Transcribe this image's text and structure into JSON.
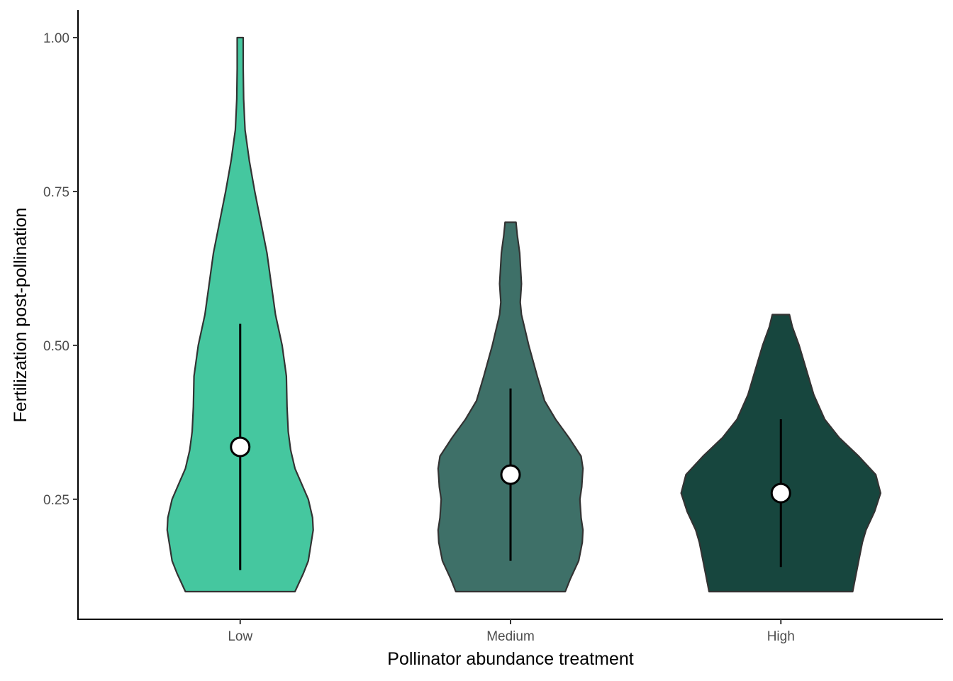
{
  "chart_data": {
    "type": "violin",
    "xlabel": "Pollinator abundance treatment",
    "ylabel": "Fertilization post-pollination",
    "categories": [
      "Low",
      "Medium",
      "High"
    ],
    "yticks": [
      0.25,
      0.5,
      0.75,
      1.0
    ],
    "ytick_labels": [
      "0.25",
      "0.50",
      "0.75",
      "1.00"
    ],
    "ylim": [
      0.055,
      1.045
    ],
    "grid": false,
    "legend": "none",
    "colors": [
      "#45c79f",
      "#3e7068",
      "#17463e"
    ],
    "outline_color": "#333333",
    "violins": [
      {
        "category": "Low",
        "mean": 0.335,
        "error_low": 0.135,
        "error_high": 0.535,
        "profile": [
          [
            0.1,
            0.45
          ],
          [
            0.13,
            0.52
          ],
          [
            0.15,
            0.56
          ],
          [
            0.2,
            0.6
          ],
          [
            0.22,
            0.595
          ],
          [
            0.25,
            0.56
          ],
          [
            0.3,
            0.45
          ],
          [
            0.33,
            0.415
          ],
          [
            0.36,
            0.395
          ],
          [
            0.4,
            0.385
          ],
          [
            0.45,
            0.38
          ],
          [
            0.5,
            0.345
          ],
          [
            0.55,
            0.29
          ],
          [
            0.6,
            0.255
          ],
          [
            0.65,
            0.22
          ],
          [
            0.7,
            0.17
          ],
          [
            0.75,
            0.12
          ],
          [
            0.8,
            0.075
          ],
          [
            0.85,
            0.04
          ],
          [
            0.9,
            0.028
          ],
          [
            0.95,
            0.025
          ],
          [
            1.0,
            0.025
          ]
        ]
      },
      {
        "category": "Medium",
        "mean": 0.29,
        "error_low": 0.15,
        "error_high": 0.43,
        "profile": [
          [
            0.1,
            0.45
          ],
          [
            0.12,
            0.49
          ],
          [
            0.15,
            0.56
          ],
          [
            0.18,
            0.59
          ],
          [
            0.2,
            0.595
          ],
          [
            0.22,
            0.58
          ],
          [
            0.25,
            0.57
          ],
          [
            0.27,
            0.585
          ],
          [
            0.3,
            0.595
          ],
          [
            0.32,
            0.58
          ],
          [
            0.35,
            0.48
          ],
          [
            0.38,
            0.37
          ],
          [
            0.41,
            0.28
          ],
          [
            0.45,
            0.22
          ],
          [
            0.5,
            0.15
          ],
          [
            0.55,
            0.09
          ],
          [
            0.57,
            0.08
          ],
          [
            0.6,
            0.09
          ],
          [
            0.65,
            0.075
          ],
          [
            0.68,
            0.055
          ],
          [
            0.7,
            0.045
          ]
        ]
      },
      {
        "category": "High",
        "mean": 0.26,
        "error_low": 0.14,
        "error_high": 0.38,
        "profile": [
          [
            0.1,
            0.59
          ],
          [
            0.11,
            0.6
          ],
          [
            0.13,
            0.62
          ],
          [
            0.15,
            0.64
          ],
          [
            0.18,
            0.67
          ],
          [
            0.2,
            0.7
          ],
          [
            0.23,
            0.77
          ],
          [
            0.26,
            0.82
          ],
          [
            0.29,
            0.78
          ],
          [
            0.32,
            0.64
          ],
          [
            0.35,
            0.48
          ],
          [
            0.38,
            0.36
          ],
          [
            0.42,
            0.27
          ],
          [
            0.46,
            0.21
          ],
          [
            0.5,
            0.15
          ],
          [
            0.53,
            0.095
          ],
          [
            0.55,
            0.07
          ]
        ]
      }
    ]
  }
}
